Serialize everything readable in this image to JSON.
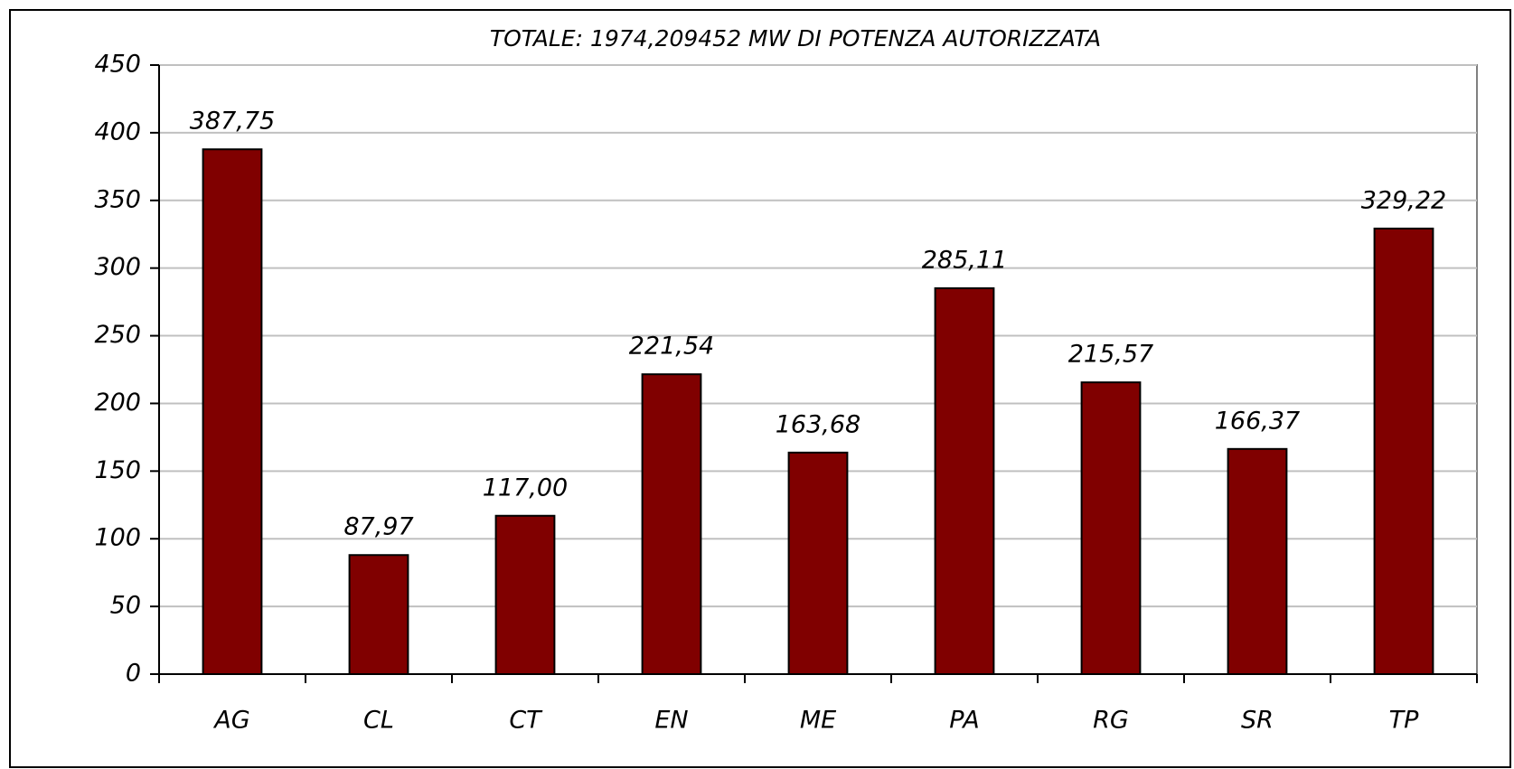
{
  "chart_data": {
    "type": "bar",
    "title": "TOTALE: 1974,209452 MW DI POTENZA AUTORIZZATA",
    "categories": [
      "AG",
      "CL",
      "CT",
      "EN",
      "ME",
      "PA",
      "RG",
      "SR",
      "TP"
    ],
    "values": [
      387.75,
      87.97,
      117,
      221.54,
      163.68,
      285.11,
      215.57,
      166.37,
      329.22
    ],
    "value_labels": [
      "387,75",
      "87,97",
      "117,00",
      "221,54",
      "163,68",
      "285,11",
      "215,57",
      "166,37",
      "329,22"
    ],
    "color": "#800000",
    "ylim": [
      0,
      450
    ],
    "yticks": [
      0,
      50,
      100,
      150,
      200,
      250,
      300,
      350,
      400,
      450
    ],
    "grid": true
  }
}
